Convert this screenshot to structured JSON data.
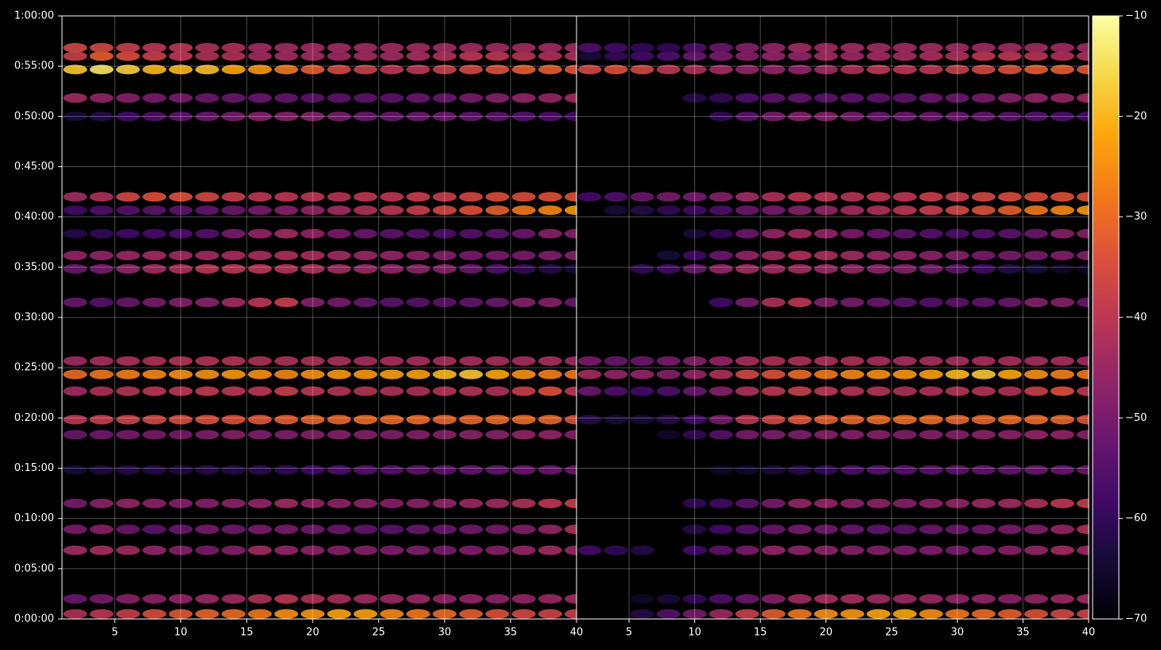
{
  "chart_data": {
    "type": "heatmap",
    "colormap": "inferno",
    "grid": true,
    "clim": [
      -70,
      -10
    ],
    "cticks": [
      {
        "value": -70,
        "label": "−70"
      },
      {
        "value": -60,
        "label": "−60"
      },
      {
        "value": -50,
        "label": "−50"
      },
      {
        "value": -40,
        "label": "−40"
      },
      {
        "value": -30,
        "label": "−30"
      },
      {
        "value": -20,
        "label": "−20"
      },
      {
        "value": -10,
        "label": "−10"
      }
    ],
    "ylim": [
      0,
      3600
    ],
    "yticks": [
      {
        "value": 0,
        "label": "0:00:00"
      },
      {
        "value": 300,
        "label": "0:05:00"
      },
      {
        "value": 600,
        "label": "0:10:00"
      },
      {
        "value": 900,
        "label": "0:15:00"
      },
      {
        "value": 1200,
        "label": "0:20:00"
      },
      {
        "value": 1500,
        "label": "0:25:00"
      },
      {
        "value": 1800,
        "label": "0:30:00"
      },
      {
        "value": 2100,
        "label": "0:35:00"
      },
      {
        "value": 2400,
        "label": "0:40:00"
      },
      {
        "value": 2700,
        "label": "0:45:00"
      },
      {
        "value": 3000,
        "label": "0:50:00"
      },
      {
        "value": 3300,
        "label": "0:55:00"
      },
      {
        "value": 3600,
        "label": "1:00:00"
      }
    ],
    "y": [
      30,
      120,
      410,
      535,
      690,
      890,
      1190,
      1100,
      1360,
      1460,
      1540,
      1890,
      2090,
      2170,
      2300,
      2440,
      2520,
      3000,
      3110,
      3280,
      3360,
      3410
    ],
    "panels": [
      {
        "xlim": [
          1,
          40
        ],
        "xticks": [
          5,
          10,
          15,
          20,
          25,
          30,
          35,
          40
        ],
        "x": [
          2,
          4,
          6,
          8,
          10,
          12,
          14,
          16,
          18,
          20,
          22,
          24,
          26,
          28,
          30,
          32,
          34,
          36,
          38,
          40
        ],
        "z": [
          [
            -42,
            -40,
            -38,
            -35,
            -33,
            -31,
            -30,
            -28,
            -25,
            -24,
            -22,
            -23,
            -26,
            -28,
            -30,
            -32,
            -34,
            -36,
            -37,
            -38
          ],
          [
            -52,
            -50,
            -48,
            -47,
            -46,
            -45,
            -44,
            -42,
            -40,
            -42,
            -43,
            -44,
            -45,
            -45,
            -46,
            -46,
            -47,
            -46,
            -45,
            -44
          ],
          [
            -44,
            -43,
            -44,
            -46,
            -48,
            -50,
            -48,
            -44,
            -46,
            -47,
            -48,
            -48,
            -49,
            -49,
            -50,
            -49,
            -48,
            -46,
            -44,
            -45
          ],
          [
            -50,
            -48,
            -52,
            -54,
            -52,
            -50,
            -51,
            -50,
            -50,
            -51,
            -52,
            -53,
            -54,
            -52,
            -52,
            -51,
            -50,
            -49,
            -46,
            -42
          ],
          [
            -50,
            -47,
            -46,
            -47,
            -48,
            -48,
            -47,
            -46,
            -44,
            -46,
            -47,
            -47,
            -48,
            -47,
            -46,
            -45,
            -44,
            -42,
            -40,
            -38
          ],
          [
            -64,
            -63,
            -62,
            -62,
            -63,
            -62,
            -62,
            -61,
            -60,
            -58,
            -56,
            -55,
            -55,
            -54,
            -54,
            -53,
            -53,
            -52,
            -52,
            -52
          ],
          [
            -40,
            -38,
            -37,
            -36,
            -35,
            -34,
            -34,
            -33,
            -32,
            -31,
            -31,
            -30,
            -30,
            -30,
            -31,
            -31,
            -30,
            -30,
            -31,
            -34
          ],
          [
            -52,
            -51,
            -50,
            -50,
            -50,
            -49,
            -48,
            -49,
            -49,
            -48,
            -48,
            -48,
            -49,
            -48,
            -48,
            -47,
            -47,
            -46,
            -46,
            -48
          ],
          [
            -44,
            -42,
            -41,
            -40,
            -40,
            -39,
            -40,
            -40,
            -38,
            -40,
            -41,
            -41,
            -42,
            -42,
            -41,
            -41,
            -42,
            -38,
            -34,
            -40
          ],
          [
            -30,
            -28,
            -27,
            -26,
            -25,
            -25,
            -24,
            -25,
            -26,
            -25,
            -24,
            -24,
            -23,
            -23,
            -20,
            -18,
            -22,
            -25,
            -27,
            -28
          ],
          [
            -44,
            -43,
            -42,
            -42,
            -41,
            -41,
            -41,
            -42,
            -42,
            -42,
            -42,
            -43,
            -43,
            -43,
            -43,
            -43,
            -43,
            -43,
            -43,
            -44
          ],
          [
            -52,
            -55,
            -52,
            -50,
            -48,
            -47,
            -44,
            -40,
            -38,
            -48,
            -50,
            -52,
            -54,
            -55,
            -54,
            -53,
            -52,
            -48,
            -48,
            -52
          ],
          [
            -52,
            -50,
            -46,
            -44,
            -42,
            -40,
            -40,
            -40,
            -41,
            -42,
            -44,
            -45,
            -46,
            -47,
            -48,
            -52,
            -56,
            -60,
            -62,
            -64
          ],
          [
            -46,
            -46,
            -45,
            -44,
            -44,
            -44,
            -43,
            -43,
            -42,
            -43,
            -44,
            -45,
            -46,
            -47,
            -48,
            -50,
            -50,
            -50,
            -49,
            -48
          ],
          [
            -62,
            -60,
            -58,
            -57,
            -56,
            -55,
            -50,
            -46,
            -44,
            -46,
            -50,
            -52,
            -54,
            -55,
            -56,
            -55,
            -54,
            -52,
            -48,
            -48
          ],
          [
            -58,
            -56,
            -55,
            -54,
            -54,
            -53,
            -52,
            -50,
            -48,
            -46,
            -44,
            -42,
            -40,
            -38,
            -36,
            -34,
            -32,
            -28,
            -26,
            -24
          ],
          [
            -44,
            -42,
            -36,
            -34,
            -34,
            -36,
            -38,
            -40,
            -40,
            -40,
            -41,
            -40,
            -40,
            -38,
            -38,
            -36,
            -35,
            -35,
            -34,
            -34
          ],
          [
            -64,
            -62,
            -58,
            -56,
            -54,
            -52,
            -50,
            -48,
            -48,
            -48,
            -50,
            -52,
            -52,
            -52,
            -52,
            -53,
            -54,
            -55,
            -56,
            -58
          ],
          [
            -44,
            -46,
            -48,
            -50,
            -50,
            -52,
            -52,
            -52,
            -53,
            -54,
            -54,
            -54,
            -54,
            -52,
            -52,
            -50,
            -48,
            -46,
            -46,
            -44
          ],
          [
            -18,
            -14,
            -17,
            -20,
            -20,
            -19,
            -22,
            -24,
            -28,
            -32,
            -36,
            -38,
            -40,
            -40,
            -38,
            -36,
            -34,
            -32,
            -32,
            -33
          ],
          [
            -38,
            -32,
            -35,
            -38,
            -40,
            -42,
            -42,
            -44,
            -44,
            -44,
            -45,
            -44,
            -44,
            -43,
            -42,
            -40,
            -40,
            -41,
            -42,
            -42
          ],
          [
            -36,
            -36,
            -38,
            -40,
            -40,
            -42,
            -42,
            -44,
            -44,
            -44,
            -44,
            -44,
            -44,
            -44,
            -44,
            -44,
            -44,
            -44,
            -44,
            -44
          ]
        ]
      },
      {
        "xlim": [
          1,
          40
        ],
        "xticks": [
          5,
          10,
          15,
          20,
          25,
          30,
          35,
          40
        ],
        "x": [
          2,
          4,
          6,
          8,
          10,
          12,
          14,
          16,
          18,
          20,
          22,
          24,
          26,
          28,
          30,
          32,
          34,
          36,
          38,
          40
        ],
        "z": [
          [
            null,
            null,
            -62,
            -55,
            -50,
            -45,
            -38,
            -32,
            -28,
            -25,
            -24,
            -22,
            -22,
            -25,
            -28,
            -30,
            -32,
            -34,
            -36,
            -37
          ],
          [
            null,
            null,
            -66,
            -64,
            -60,
            -56,
            -52,
            -48,
            -44,
            -43,
            -43,
            -44,
            -45,
            -45,
            -46,
            -46,
            -47,
            -46,
            -45,
            -44
          ],
          [
            -58,
            -60,
            -62,
            null,
            -58,
            -54,
            -50,
            -46,
            -47,
            -47,
            -48,
            -48,
            -49,
            -49,
            -50,
            -49,
            -48,
            -46,
            -44,
            -45
          ],
          [
            null,
            null,
            null,
            null,
            -62,
            -58,
            -55,
            -52,
            -50,
            -51,
            -52,
            -53,
            -54,
            -52,
            -52,
            -51,
            -50,
            -49,
            -46,
            -42
          ],
          [
            null,
            null,
            null,
            null,
            -60,
            -58,
            -54,
            -50,
            -46,
            -46,
            -47,
            -47,
            -48,
            -47,
            -46,
            -45,
            -44,
            -42,
            -40,
            -38
          ],
          [
            null,
            null,
            null,
            null,
            null,
            -66,
            -65,
            -64,
            -62,
            -60,
            -56,
            -55,
            -55,
            -54,
            -54,
            -53,
            -53,
            -52,
            -52,
            -52
          ],
          [
            -62,
            -64,
            -64,
            -62,
            -58,
            -50,
            -40,
            -36,
            -33,
            -32,
            -31,
            -30,
            -30,
            -30,
            -31,
            -31,
            -30,
            -30,
            -31,
            -34
          ],
          [
            null,
            null,
            null,
            -66,
            -60,
            -55,
            -50,
            -49,
            -49,
            -48,
            -48,
            -48,
            -49,
            -48,
            -48,
            -47,
            -47,
            -46,
            -46,
            -48
          ],
          [
            -52,
            -56,
            -58,
            -56,
            -52,
            -48,
            -42,
            -40,
            -38,
            -40,
            -41,
            -41,
            -42,
            -42,
            -41,
            -41,
            -42,
            -38,
            -34,
            -40
          ],
          [
            -44,
            -46,
            -46,
            -48,
            -46,
            -42,
            -36,
            -34,
            -30,
            -28,
            -26,
            -25,
            -24,
            -23,
            -20,
            -18,
            -22,
            -25,
            -27,
            -28
          ],
          [
            -50,
            -52,
            -52,
            -50,
            -48,
            -46,
            -43,
            -42,
            -42,
            -42,
            -42,
            -43,
            -43,
            -43,
            -43,
            -43,
            -43,
            -43,
            -43,
            -44
          ],
          [
            null,
            null,
            null,
            null,
            null,
            -58,
            -50,
            -42,
            -40,
            -48,
            -50,
            -52,
            -54,
            -55,
            -54,
            -53,
            -52,
            -48,
            -48,
            -52
          ],
          [
            null,
            null,
            -60,
            -58,
            -52,
            -46,
            -44,
            -44,
            -44,
            -45,
            -46,
            -47,
            -48,
            -50,
            -54,
            -58,
            -62,
            -64,
            -66,
            -66
          ],
          [
            null,
            null,
            null,
            -64,
            -58,
            -52,
            -46,
            -44,
            -42,
            -43,
            -44,
            -45,
            -46,
            -47,
            -48,
            -50,
            -50,
            -50,
            -49,
            -48
          ],
          [
            null,
            null,
            null,
            null,
            -64,
            -60,
            -52,
            -46,
            -44,
            -46,
            -50,
            -52,
            -54,
            -55,
            -56,
            -55,
            -54,
            -52,
            -48,
            -48
          ],
          [
            null,
            -64,
            -62,
            -60,
            -58,
            -56,
            -52,
            -50,
            -48,
            -46,
            -44,
            -42,
            -40,
            -38,
            -36,
            -34,
            -32,
            -28,
            -26,
            -24
          ],
          [
            -58,
            -56,
            -52,
            -50,
            -50,
            -48,
            -44,
            -42,
            -40,
            -40,
            -41,
            -40,
            -40,
            -38,
            -38,
            -36,
            -35,
            -35,
            -34,
            -34
          ],
          [
            null,
            null,
            null,
            null,
            null,
            -60,
            -54,
            -50,
            -48,
            -48,
            -50,
            -52,
            -52,
            -52,
            -52,
            -53,
            -54,
            -55,
            -56,
            -58
          ],
          [
            null,
            null,
            null,
            null,
            -62,
            -60,
            -56,
            -54,
            -53,
            -54,
            -54,
            -54,
            -54,
            -52,
            -52,
            -50,
            -48,
            -46,
            -46,
            -44
          ],
          [
            -36,
            -34,
            -36,
            -40,
            -42,
            -44,
            -46,
            -46,
            -46,
            -44,
            -42,
            -40,
            -40,
            -40,
            -38,
            -36,
            -34,
            -32,
            -32,
            -33
          ],
          [
            -64,
            -60,
            -58,
            -56,
            -52,
            -50,
            -48,
            -46,
            -46,
            -44,
            -45,
            -44,
            -44,
            -43,
            -42,
            -40,
            -40,
            -41,
            -42,
            -42
          ],
          [
            -56,
            -58,
            -60,
            -60,
            -56,
            -52,
            -48,
            -46,
            -44,
            -44,
            -44,
            -44,
            -44,
            -44,
            -44,
            -44,
            -44,
            -44,
            -44,
            -44
          ]
        ]
      }
    ]
  }
}
